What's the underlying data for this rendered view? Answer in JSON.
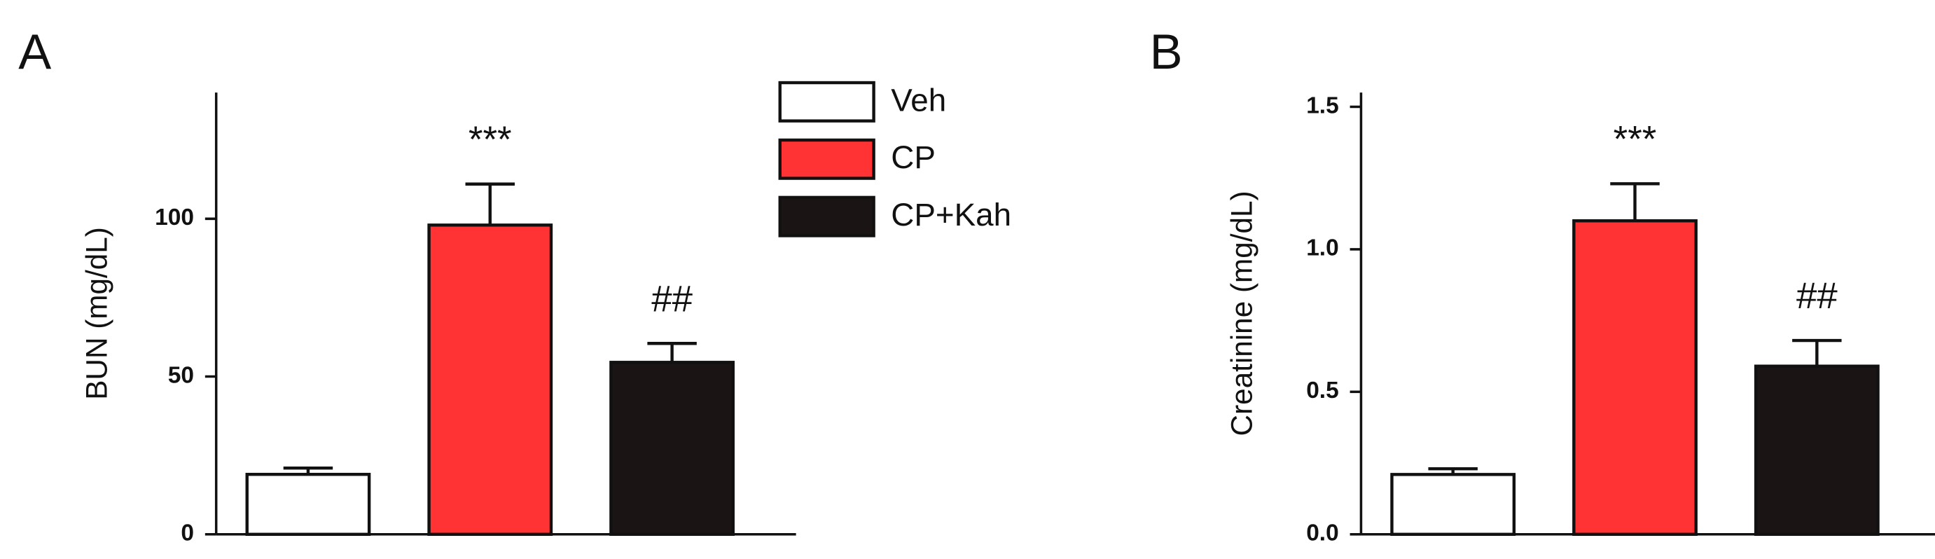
{
  "chart_data": [
    {
      "type": "bar",
      "panel_label": "A",
      "ylabel": "BUN (mg/dL)",
      "ylim": [
        0,
        140
      ],
      "yticks": [
        0,
        50,
        100
      ],
      "series": [
        {
          "name": "Veh",
          "color": "#ffffff",
          "values": [
            19
          ],
          "errors": [
            2
          ]
        },
        {
          "name": "CP",
          "color": "#ff3333",
          "values": [
            98
          ],
          "errors": [
            13
          ]
        },
        {
          "name": "CP+Kah",
          "color": "#1a1414",
          "values": [
            54.5
          ],
          "errors": [
            6
          ]
        }
      ],
      "annotations": [
        {
          "text": "***",
          "series": 1
        },
        {
          "text": "##",
          "series": 2
        }
      ]
    },
    {
      "type": "bar",
      "panel_label": "B",
      "ylabel": "Creatinine (mg/dL)",
      "ylim": [
        0,
        1.55
      ],
      "yticks": [
        {
          "value": 0,
          "label": "0.0"
        },
        0.5,
        {
          "value": 1,
          "label": "1.0"
        },
        1.5
      ],
      "series": [
        {
          "color": "#ffffff",
          "values": [
            0.21
          ],
          "errors": [
            0.02
          ]
        },
        {
          "color": "#ff3333",
          "values": [
            1.1
          ],
          "errors": [
            0.13
          ]
        },
        {
          "color": "#1a1414",
          "values": [
            0.59
          ],
          "errors": [
            0.09
          ]
        }
      ],
      "annotations": [
        {
          "text": "***",
          "series": 1
        },
        {
          "text": "##",
          "series": 2
        }
      ]
    }
  ]
}
